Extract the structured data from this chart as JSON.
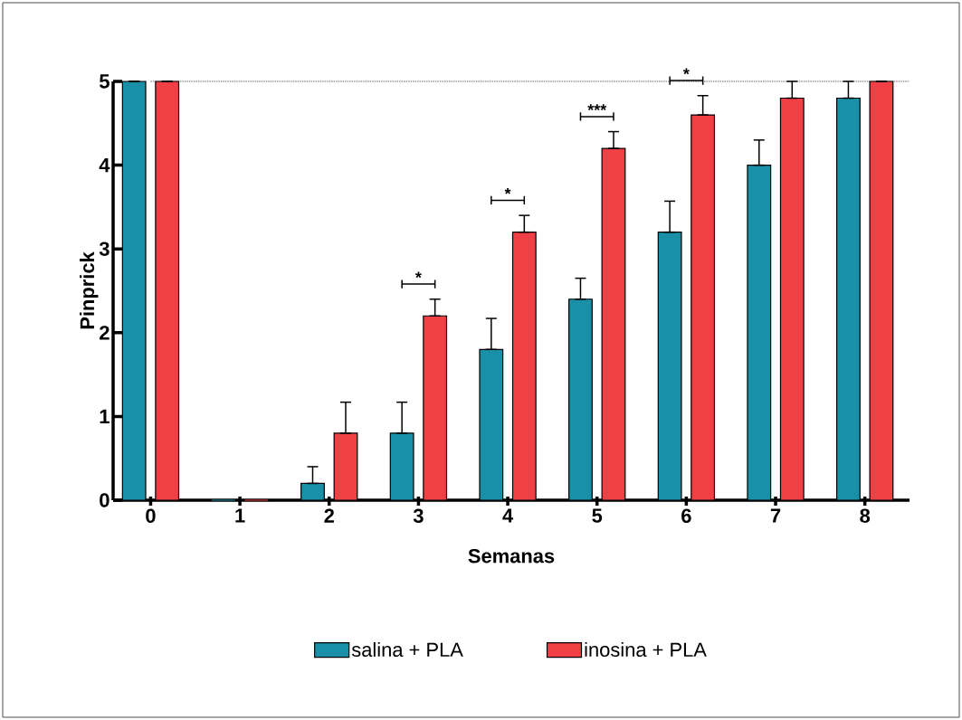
{
  "chart_data": {
    "type": "bar",
    "xlabel": "Semanas",
    "ylabel": "Pinprick",
    "categories": [
      "0",
      "1",
      "2",
      "3",
      "4",
      "5",
      "6",
      "7",
      "8"
    ],
    "series": [
      {
        "name": "salina + PLA",
        "color": "#1a8fa8",
        "values": [
          5,
          0,
          0.2,
          0.8,
          1.8,
          2.4,
          3.2,
          4.0,
          4.8
        ],
        "errors": [
          null,
          null,
          [
            0.2,
            0.4
          ],
          [
            0.8,
            1.17
          ],
          [
            1.8,
            2.17
          ],
          [
            2.4,
            2.65
          ],
          [
            3.2,
            3.57
          ],
          [
            4.0,
            4.3
          ],
          [
            4.8,
            5.0
          ]
        ]
      },
      {
        "name": "inosina + PLA",
        "color": "#f04045",
        "values": [
          5,
          0,
          0.8,
          2.2,
          3.2,
          4.2,
          4.6,
          4.8,
          5
        ],
        "errors": [
          null,
          null,
          [
            0.8,
            1.17
          ],
          [
            2.2,
            2.4
          ],
          [
            3.2,
            3.4
          ],
          [
            4.2,
            4.4
          ],
          [
            4.6,
            4.83
          ],
          [
            4.8,
            5.0
          ],
          null
        ]
      }
    ],
    "ylim": [
      0,
      5
    ],
    "yticks": [
      0,
      1,
      2,
      3,
      4,
      5
    ],
    "ref_lines": [
      {
        "axis": "y",
        "value": 5,
        "color": "#999999",
        "line_style": "dotted"
      }
    ],
    "annotations": [
      "*",
      "*",
      "***",
      "*"
    ],
    "legend": "bottom",
    "grid": false
  }
}
